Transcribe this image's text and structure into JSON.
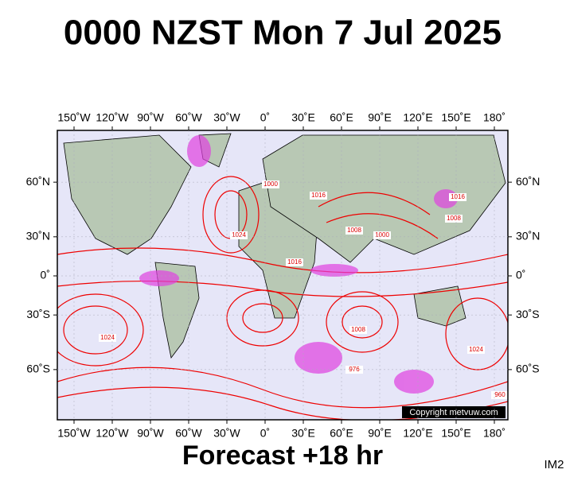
{
  "title": "0000 NZST Mon 7 Jul 2025",
  "footer": "Forecast +18 hr",
  "corner_label": "IM2",
  "copyright": "Copyright metvuw.com",
  "map": {
    "longitude_ticks": [
      {
        "value": -150,
        "label": "150˚W"
      },
      {
        "value": -120,
        "label": "120˚W"
      },
      {
        "value": -90,
        "label": "90˚W"
      },
      {
        "value": -60,
        "label": "60˚W"
      },
      {
        "value": -30,
        "label": "30˚W"
      },
      {
        "value": 0,
        "label": "0˚"
      },
      {
        "value": 30,
        "label": "30˚E"
      },
      {
        "value": 60,
        "label": "60˚E"
      },
      {
        "value": 90,
        "label": "90˚E"
      },
      {
        "value": 120,
        "label": "120˚E"
      },
      {
        "value": 150,
        "label": "150˚E"
      },
      {
        "value": 180,
        "label": "180˚"
      }
    ],
    "latitude_ticks": [
      {
        "value": 60,
        "label": "60˚N"
      },
      {
        "value": 30,
        "label": "30˚N"
      },
      {
        "value": 0,
        "label": "0˚"
      },
      {
        "value": -30,
        "label": "30˚S"
      },
      {
        "value": -60,
        "label": "60˚S"
      }
    ],
    "isobar_labels": [
      "1000",
      "1016",
      "1008",
      "1024",
      "1016",
      "1008",
      "1000",
      "1024",
      "1016",
      "1008",
      "976",
      "960",
      "1024"
    ]
  }
}
